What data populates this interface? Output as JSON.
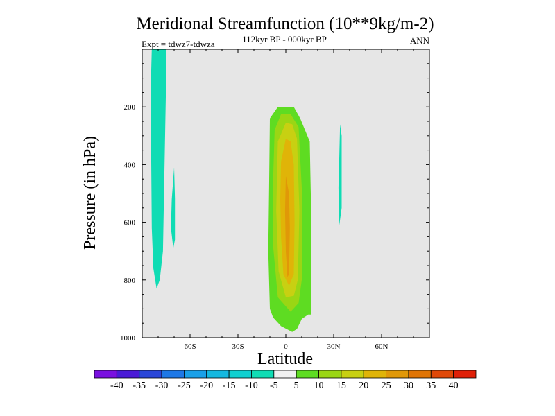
{
  "chart_data": {
    "type": "contour",
    "title": "Meridional Streamfunction (10**9kg/m-2)",
    "subtitle_center": "112kyr BP - 000kyr BP",
    "subtitle_left": "Expt = tdwz7-tdwza",
    "subtitle_right": "ANN",
    "xlabel": "Latitude",
    "ylabel": "Pressure (in hPa)",
    "xlim": [
      -90,
      90
    ],
    "ylim": [
      1000,
      0
    ],
    "x_ticks": [
      -60,
      -30,
      0,
      30,
      60
    ],
    "x_tick_labels": [
      "60S",
      "30S",
      "0",
      "30N",
      "60N"
    ],
    "y_ticks": [
      200,
      400,
      600,
      800,
      1000
    ],
    "y_tick_labels": [
      "200",
      "400",
      "600",
      "800",
      "1000"
    ],
    "background_color": "#e6e6e6",
    "contour_levels": [
      -40,
      -35,
      -30,
      -25,
      -20,
      -15,
      -10,
      -5,
      5,
      10,
      15,
      20,
      25,
      30,
      35,
      40
    ],
    "colorbar_labels": [
      "-40",
      "-35",
      "-30",
      "-25",
      "-20",
      "-15",
      "-10",
      "-5",
      "5",
      "10",
      "15",
      "20",
      "25",
      "30",
      "35",
      "40"
    ],
    "colorbar_colors": [
      "#7a10e0",
      "#4a1ad6",
      "#2a46d8",
      "#1e78e6",
      "#1aa0e8",
      "#14b8e0",
      "#10d0d0",
      "#10dcb4",
      "#f0f0f0",
      "#5edc22",
      "#9ad614",
      "#c8d012",
      "#e0b408",
      "#e09808",
      "#e07404",
      "#e04808",
      "#e02008"
    ],
    "regions": [
      {
        "level_range": [
          -10,
          -5
        ],
        "color": "#10dcb4",
        "points": [
          [
            -84,
            0
          ],
          [
            -75,
            0
          ],
          [
            -75,
            100
          ],
          [
            -76,
            400
          ],
          [
            -77,
            700
          ],
          [
            -79,
            800
          ],
          [
            -81,
            830
          ],
          [
            -83,
            760
          ],
          [
            -84,
            620
          ],
          [
            -84.5,
            300
          ],
          [
            -84.5,
            100
          ]
        ]
      },
      {
        "level_range": [
          -10,
          -5
        ],
        "color": "#10dcb4",
        "points": [
          [
            -70,
            410
          ],
          [
            -69.5,
            520
          ],
          [
            -69.5,
            660
          ],
          [
            -70.5,
            690
          ],
          [
            -72,
            620
          ],
          [
            -71.5,
            520
          ]
        ]
      },
      {
        "level_range": [
          -10,
          -5
        ],
        "color": "#10dcb4",
        "points": [
          [
            34,
            260
          ],
          [
            33.5,
            370
          ],
          [
            33,
            480
          ],
          [
            33.5,
            610
          ],
          [
            35,
            550
          ],
          [
            35,
            400
          ],
          [
            35,
            300
          ]
        ]
      },
      {
        "level_range": [
          5,
          10
        ],
        "color": "#5edc22",
        "points": [
          [
            -10,
            240
          ],
          [
            -5,
            200
          ],
          [
            5,
            200
          ],
          [
            9,
            240
          ],
          [
            15,
            320
          ],
          [
            16,
            600
          ],
          [
            16,
            920
          ],
          [
            14,
            920
          ],
          [
            10,
            935
          ],
          [
            7,
            970
          ],
          [
            4,
            980
          ],
          [
            -3,
            960
          ],
          [
            -8,
            930
          ],
          [
            -10,
            900
          ],
          [
            -11,
            700
          ],
          [
            -10.5,
            480
          ]
        ]
      },
      {
        "level_range": [
          10,
          15
        ],
        "color": "#9ad614",
        "points": [
          [
            -7,
            280
          ],
          [
            -3,
            225
          ],
          [
            3,
            225
          ],
          [
            8,
            270
          ],
          [
            10,
            480
          ],
          [
            10,
            800
          ],
          [
            8,
            880
          ],
          [
            3,
            910
          ],
          [
            -5,
            860
          ],
          [
            -8,
            680
          ],
          [
            -8,
            460
          ]
        ]
      },
      {
        "level_range": [
          15,
          20
        ],
        "color": "#c8d012",
        "points": [
          [
            -5,
            320
          ],
          [
            0,
            255
          ],
          [
            4,
            260
          ],
          [
            7,
            310
          ],
          [
            8.5,
            560
          ],
          [
            7.5,
            800
          ],
          [
            5,
            855
          ],
          [
            0,
            860
          ],
          [
            -4.5,
            770
          ],
          [
            -6,
            560
          ]
        ]
      },
      {
        "level_range": [
          20,
          25
        ],
        "color": "#e0b408",
        "points": [
          [
            -3,
            390
          ],
          [
            0,
            310
          ],
          [
            3,
            320
          ],
          [
            5,
            400
          ],
          [
            5.5,
            600
          ],
          [
            5,
            780
          ],
          [
            2,
            820
          ],
          [
            -1.5,
            780
          ],
          [
            -3,
            650
          ],
          [
            -3.5,
            520
          ]
        ]
      },
      {
        "level_range": [
          25,
          30
        ],
        "color": "#e09808",
        "points": [
          [
            0,
            440
          ],
          [
            2,
            500
          ],
          [
            2.5,
            620
          ],
          [
            2,
            780
          ],
          [
            1,
            790
          ],
          [
            0,
            700
          ],
          [
            -0.5,
            560
          ]
        ]
      }
    ]
  }
}
